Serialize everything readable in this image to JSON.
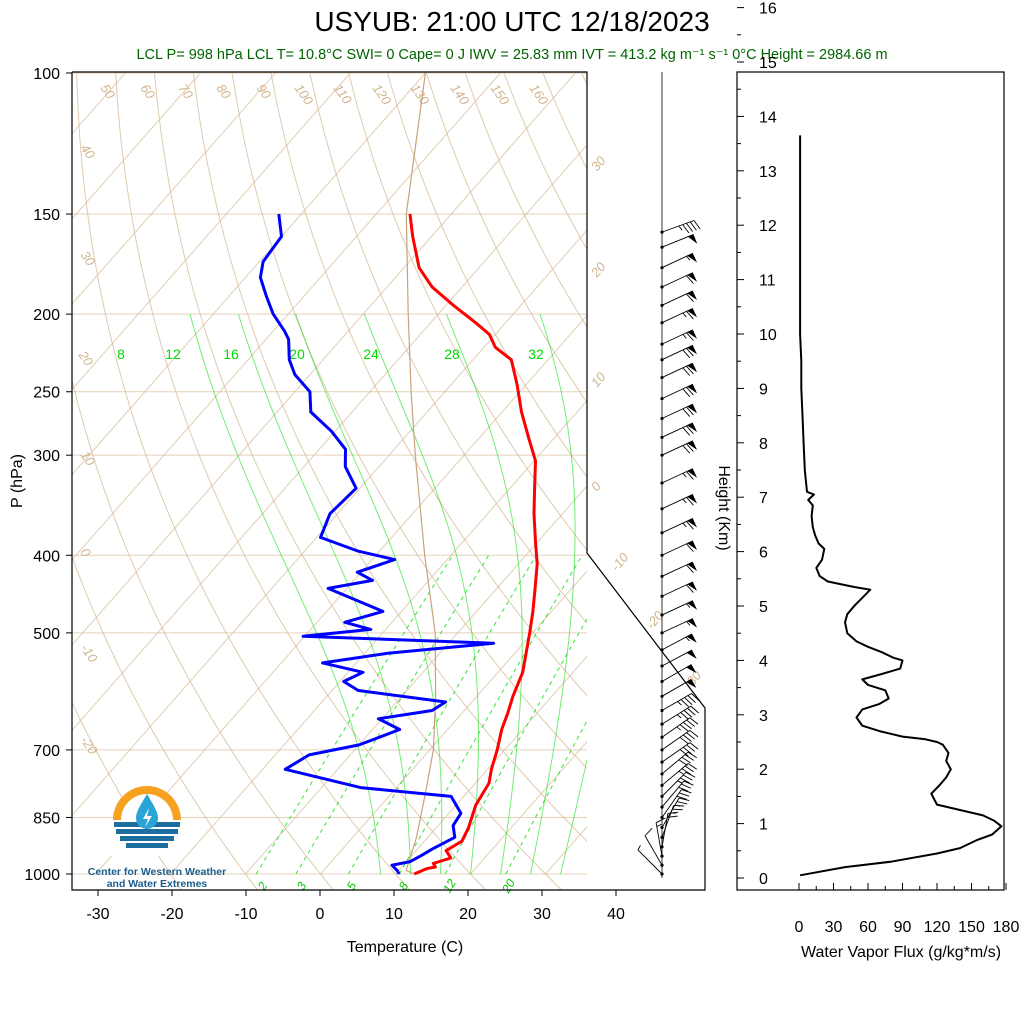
{
  "title": "USYUB: 21:00 UTC 12/18/2023",
  "subtitle": "LCL P= 998 hPa  LCL T= 10.8°C  SWI= 0  Cape= 0 J  IWV = 25.83 mm  IVT = 413.2 kg m⁻¹ s⁻¹  0°C Height = 2984.66 m",
  "logo": {
    "text_line1": "Center for Western Weather",
    "text_line2": "and Water Extremes"
  },
  "colors": {
    "temperature": "#ff0000",
    "dewpoint": "#0000ff",
    "isotherm": "#d2b48c",
    "adiabat": "#d2b48c",
    "mixing_ratio": "#00dd00",
    "flux": "#000000"
  },
  "chart_data": [
    {
      "type": "line",
      "subtype": "skew-T log-P",
      "xlabel": "Temperature (C)",
      "ylabel": "P (hPa)",
      "x_ticks": [
        "-30",
        "-20",
        "-10",
        "0",
        "10",
        "20",
        "30",
        "40"
      ],
      "y_ticks": [
        "100",
        "150",
        "200",
        "250",
        "300",
        "400",
        "500",
        "700",
        "850",
        "1000"
      ],
      "xlim": [
        -34,
        50
      ],
      "ylim": [
        1000,
        100
      ],
      "y_scale": "log",
      "dry_adiabat_labels": [
        "50",
        "60",
        "70",
        "80",
        "90",
        "100",
        "110",
        "120",
        "130",
        "140",
        "150",
        "160",
        "40",
        "30",
        "20",
        "10",
        "0",
        "-10",
        "-20"
      ],
      "moist_adiabat_labels": [
        "30",
        "20",
        "10",
        "0",
        "-10",
        "-20",
        "-30"
      ],
      "mixing_ratio_labels_top": [
        "8",
        "12",
        "16",
        "20",
        "24",
        "28",
        "32"
      ],
      "mixing_ratio_labels_bottom": [
        "2",
        "3",
        "5",
        "8",
        "12",
        "20"
      ],
      "series": [
        {
          "id": "temperature",
          "points": [
            [
              12.5,
              1000
            ],
            [
              13.5,
              985
            ],
            [
              14.5,
              980
            ],
            [
              13.8,
              970
            ],
            [
              15.5,
              955
            ],
            [
              14.0,
              935
            ],
            [
              15.0,
              910
            ],
            [
              14.3,
              875
            ],
            [
              12.6,
              820
            ],
            [
              11.8,
              770
            ],
            [
              10.5,
              740
            ],
            [
              9.0,
              700
            ],
            [
              7.2,
              660
            ],
            [
              6.1,
              630
            ],
            [
              4.8,
              600
            ],
            [
              3.3,
              560
            ],
            [
              1.5,
              530
            ],
            [
              -0.4,
              500
            ],
            [
              -2.5,
              470
            ],
            [
              -4.9,
              440
            ],
            [
              -7.5,
              410
            ],
            [
              -10.3,
              385
            ],
            [
              -13.8,
              355
            ],
            [
              -16.7,
              330
            ],
            [
              -19.8,
              305
            ],
            [
              -23.5,
              285
            ],
            [
              -27.4,
              265
            ],
            [
              -31.2,
              245
            ],
            [
              -34.9,
              228
            ],
            [
              -38.5,
              220
            ],
            [
              -40.8,
              212
            ],
            [
              -44.0,
              205
            ],
            [
              -49.0,
              195
            ],
            [
              -54.0,
              185
            ],
            [
              -58.0,
              175
            ],
            [
              -62.5,
              160
            ],
            [
              -65.5,
              150
            ]
          ]
        },
        {
          "id": "dewpoint",
          "points": [
            [
              10.5,
              1000
            ],
            [
              9.8,
              990
            ],
            [
              8.5,
              975
            ],
            [
              10.5,
              965
            ],
            [
              11.2,
              950
            ],
            [
              12.0,
              930
            ],
            [
              13.6,
              900
            ],
            [
              12.0,
              870
            ],
            [
              11.6,
              840
            ],
            [
              8.3,
              800
            ],
            [
              -4.8,
              780
            ],
            [
              -17.0,
              740
            ],
            [
              -15.5,
              710
            ],
            [
              -10.0,
              690
            ],
            [
              -6.4,
              660
            ],
            [
              -10.5,
              640
            ],
            [
              -4.3,
              625
            ],
            [
              -3.5,
              610
            ],
            [
              -16.5,
              590
            ],
            [
              -19.5,
              575
            ],
            [
              -18.0,
              560
            ],
            [
              -24.5,
              545
            ],
            [
              -16.8,
              530
            ],
            [
              -4.0,
              515
            ],
            [
              -30.2,
              505
            ],
            [
              -22.0,
              495
            ],
            [
              -26.3,
              485
            ],
            [
              -22.5,
              470
            ],
            [
              -32.5,
              440
            ],
            [
              -27.5,
              430
            ],
            [
              -30.5,
              420
            ],
            [
              -27.0,
              405
            ],
            [
              -33.0,
              395
            ],
            [
              -39.5,
              380
            ],
            [
              -41.0,
              355
            ],
            [
              -40.5,
              330
            ],
            [
              -44.5,
              310
            ],
            [
              -46.5,
              295
            ],
            [
              -50.5,
              280
            ],
            [
              -55.5,
              265
            ],
            [
              -58.0,
              250
            ],
            [
              -62.0,
              238
            ],
            [
              -64.5,
              228
            ],
            [
              -67.0,
              215
            ],
            [
              -68.5,
              210
            ],
            [
              -72.0,
              200
            ],
            [
              -75.0,
              190
            ],
            [
              -78.0,
              180
            ],
            [
              -79.5,
              172
            ],
            [
              -80.0,
              160
            ],
            [
              -83.0,
              150
            ]
          ]
        },
        {
          "id": "parcel",
          "points": [
            [
              12.5,
              1000
            ],
            [
              11.0,
              990
            ],
            [
              8.5,
              900
            ],
            [
              4.8,
              800
            ],
            [
              0.5,
              700
            ],
            [
              -5.5,
              600
            ],
            [
              -13.0,
              500
            ],
            [
              -23.5,
              400
            ],
            [
              -36.5,
              300
            ],
            [
              -44.5,
              250
            ],
            [
              -54.0,
              200
            ],
            [
              -66.0,
              150
            ],
            [
              -80.0,
              100
            ]
          ]
        }
      ],
      "wind_barbs": [
        {
          "p": 1000,
          "speed_kt": 5,
          "dir_deg": 135
        },
        {
          "p": 975,
          "speed_kt": 10,
          "dir_deg": 150
        },
        {
          "p": 950,
          "speed_kt": 15,
          "dir_deg": 170
        },
        {
          "p": 925,
          "speed_kt": 20,
          "dir_deg": 190
        },
        {
          "p": 900,
          "speed_kt": 25,
          "dir_deg": 200
        },
        {
          "p": 875,
          "speed_kt": 25,
          "dir_deg": 210
        },
        {
          "p": 850,
          "speed_kt": 30,
          "dir_deg": 215
        },
        {
          "p": 825,
          "speed_kt": 30,
          "dir_deg": 220
        },
        {
          "p": 800,
          "speed_kt": 35,
          "dir_deg": 225
        },
        {
          "p": 775,
          "speed_kt": 35,
          "dir_deg": 230
        },
        {
          "p": 750,
          "speed_kt": 40,
          "dir_deg": 230
        },
        {
          "p": 725,
          "speed_kt": 40,
          "dir_deg": 235
        },
        {
          "p": 700,
          "speed_kt": 40,
          "dir_deg": 235
        },
        {
          "p": 675,
          "speed_kt": 45,
          "dir_deg": 235
        },
        {
          "p": 650,
          "speed_kt": 45,
          "dir_deg": 238
        },
        {
          "p": 625,
          "speed_kt": 45,
          "dir_deg": 240
        },
        {
          "p": 600,
          "speed_kt": 50,
          "dir_deg": 240
        },
        {
          "p": 575,
          "speed_kt": 50,
          "dir_deg": 240
        },
        {
          "p": 550,
          "speed_kt": 50,
          "dir_deg": 242
        },
        {
          "p": 525,
          "speed_kt": 55,
          "dir_deg": 242
        },
        {
          "p": 500,
          "speed_kt": 55,
          "dir_deg": 245
        },
        {
          "p": 475,
          "speed_kt": 55,
          "dir_deg": 245
        },
        {
          "p": 450,
          "speed_kt": 60,
          "dir_deg": 245
        },
        {
          "p": 425,
          "speed_kt": 60,
          "dir_deg": 245
        },
        {
          "p": 400,
          "speed_kt": 60,
          "dir_deg": 245
        },
        {
          "p": 375,
          "speed_kt": 65,
          "dir_deg": 245
        },
        {
          "p": 350,
          "speed_kt": 65,
          "dir_deg": 245
        },
        {
          "p": 325,
          "speed_kt": 65,
          "dir_deg": 245
        },
        {
          "p": 300,
          "speed_kt": 70,
          "dir_deg": 245
        },
        {
          "p": 285,
          "speed_kt": 70,
          "dir_deg": 245
        },
        {
          "p": 270,
          "speed_kt": 70,
          "dir_deg": 245
        },
        {
          "p": 255,
          "speed_kt": 70,
          "dir_deg": 245
        },
        {
          "p": 240,
          "speed_kt": 70,
          "dir_deg": 245
        },
        {
          "p": 228,
          "speed_kt": 70,
          "dir_deg": 245
        },
        {
          "p": 218,
          "speed_kt": 65,
          "dir_deg": 245
        },
        {
          "p": 205,
          "speed_kt": 65,
          "dir_deg": 245
        },
        {
          "p": 195,
          "speed_kt": 60,
          "dir_deg": 245
        },
        {
          "p": 185,
          "speed_kt": 60,
          "dir_deg": 245
        },
        {
          "p": 175,
          "speed_kt": 55,
          "dir_deg": 245
        },
        {
          "p": 165,
          "speed_kt": 50,
          "dir_deg": 248
        },
        {
          "p": 158,
          "speed_kt": 45,
          "dir_deg": 250
        }
      ]
    },
    {
      "type": "line",
      "subtype": "vertical profile",
      "xlabel": "Water Vapor Flux (g/kg*m/s)",
      "ylabel": "Height (Km)",
      "x_ticks": [
        "0",
        "30",
        "60",
        "90",
        "120",
        "150",
        "180"
      ],
      "y_ticks": [
        "0",
        "1",
        "2",
        "3",
        "4",
        "5",
        "6",
        "7",
        "8",
        "9",
        "10",
        "11",
        "12",
        "13",
        "14",
        "15",
        "16"
      ],
      "xlim": [
        0,
        180
      ],
      "ylim": [
        0,
        16.5
      ],
      "series": [
        {
          "id": "water_vapor_flux",
          "points": [
            [
              1,
              0.05
            ],
            [
              40,
              0.2
            ],
            [
              80,
              0.3
            ],
            [
              120,
              0.45
            ],
            [
              140,
              0.55
            ],
            [
              155,
              0.7
            ],
            [
              168,
              0.8
            ],
            [
              176,
              0.95
            ],
            [
              170,
              1.05
            ],
            [
              160,
              1.15
            ],
            [
              140,
              1.25
            ],
            [
              120,
              1.35
            ],
            [
              115,
              1.55
            ],
            [
              122,
              1.7
            ],
            [
              128,
              1.85
            ],
            [
              132,
              2.0
            ],
            [
              128,
              2.15
            ],
            [
              130,
              2.3
            ],
            [
              125,
              2.45
            ],
            [
              120,
              2.5
            ],
            [
              110,
              2.55
            ],
            [
              90,
              2.6
            ],
            [
              70,
              2.7
            ],
            [
              55,
              2.8
            ],
            [
              50,
              2.95
            ],
            [
              55,
              3.1
            ],
            [
              70,
              3.2
            ],
            [
              78,
              3.3
            ],
            [
              75,
              3.45
            ],
            [
              60,
              3.55
            ],
            [
              55,
              3.65
            ],
            [
              72,
              3.75
            ],
            [
              88,
              3.85
            ],
            [
              90,
              4.0
            ],
            [
              82,
              4.05
            ],
            [
              72,
              4.15
            ],
            [
              60,
              4.25
            ],
            [
              50,
              4.35
            ],
            [
              42,
              4.5
            ],
            [
              40,
              4.7
            ],
            [
              42,
              4.85
            ],
            [
              48,
              5.0
            ],
            [
              55,
              5.15
            ],
            [
              62,
              5.3
            ],
            [
              48,
              5.35
            ],
            [
              25,
              5.45
            ],
            [
              18,
              5.55
            ],
            [
              15,
              5.7
            ],
            [
              20,
              5.85
            ],
            [
              22,
              6.05
            ],
            [
              17,
              6.15
            ],
            [
              14,
              6.3
            ],
            [
              12,
              6.45
            ],
            [
              11,
              6.65
            ],
            [
              12,
              6.85
            ],
            [
              8,
              6.95
            ],
            [
              13,
              7.05
            ],
            [
              7,
              7.1
            ],
            [
              5,
              7.5
            ],
            [
              4,
              8.0
            ],
            [
              3,
              8.5
            ],
            [
              2,
              9.0
            ],
            [
              2,
              9.5
            ],
            [
              1,
              10.0
            ],
            [
              1,
              11.0
            ],
            [
              1,
              12.0
            ],
            [
              1,
              13.0
            ],
            [
              1,
              13.65
            ]
          ]
        }
      ]
    }
  ]
}
